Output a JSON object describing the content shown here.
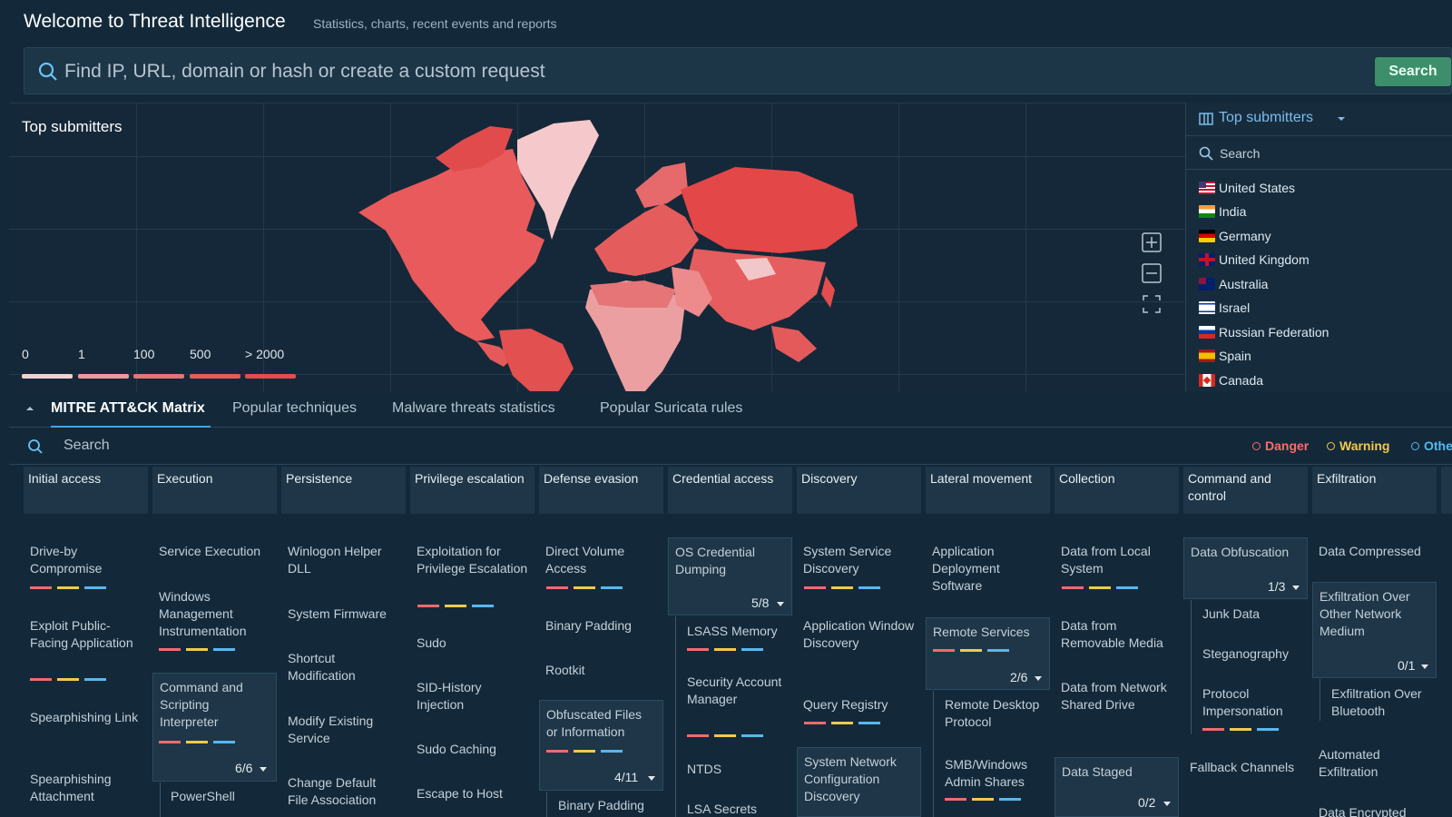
{
  "header": {
    "title": "Welcome to Threat Intelligence",
    "subtitle": "Statistics, charts, recent events and reports"
  },
  "search": {
    "placeholder": "Find IP, URL, domain or hash or create a custom request",
    "button": "Search"
  },
  "map": {
    "title": "Top submitters",
    "legend": [
      "0",
      "1",
      "100",
      "500",
      "> 2000"
    ],
    "legend_colors": [
      "#f1d2d3",
      "#ec9a9c",
      "#e67476",
      "#e65a5b",
      "#e44c4d"
    ],
    "controls": [
      "zoom-in-icon",
      "zoom-out-icon",
      "fullscreen-icon"
    ]
  },
  "side_panel": {
    "title": "Top submitters",
    "search_placeholder": "Search",
    "countries": [
      {
        "name": "United States",
        "flag": "us-flag-icon"
      },
      {
        "name": "India",
        "flag": "in-flag-icon"
      },
      {
        "name": "Germany",
        "flag": "de-flag-icon"
      },
      {
        "name": "United Kingdom",
        "flag": "gb-flag-icon"
      },
      {
        "name": "Australia",
        "flag": "au-flag-icon"
      },
      {
        "name": "Israel",
        "flag": "il-flag-icon"
      },
      {
        "name": "Russian Federation",
        "flag": "ru-flag-icon"
      },
      {
        "name": "Spain",
        "flag": "es-flag-icon"
      },
      {
        "name": "Canada",
        "flag": "ca-flag-icon"
      }
    ]
  },
  "tabs": [
    "MITRE ATT&CK Matrix",
    "Popular techniques",
    "Malware threats statistics",
    "Popular Suricata rules"
  ],
  "matrix": {
    "search_placeholder": "Search",
    "filters": [
      {
        "label": "Danger",
        "color": "#ff6b6b"
      },
      {
        "label": "Warning",
        "color": "#f2c94c"
      },
      {
        "label": "Othe",
        "color": "#56b8f0"
      }
    ],
    "severity_colors": [
      "#f26b6b",
      "#f2c94c",
      "#56b8f0"
    ],
    "columns": [
      "Initial access",
      "Execution",
      "Persistence",
      "Privilege escalation",
      "Defense evasion",
      "Credential access",
      "Discovery",
      "Lateral movement",
      "Collection",
      "Command and control",
      "Exfiltration"
    ],
    "techniques": {
      "initial_access": [
        "Drive-by Compromise",
        "Exploit Public-Facing Application",
        "Spearphishing Link",
        "Spearphishing Attachment"
      ],
      "execution": [
        "Service Execution",
        "Windows Management Instrumentation",
        "Command and Scripting Interpreter",
        "6/6",
        "PowerShell"
      ],
      "persistence": [
        "Winlogon Helper DLL",
        "System Firmware",
        "Shortcut Modification",
        "Modify Existing Service",
        "Change Default File Association"
      ],
      "privilege_escalation": [
        "Exploitation for Privilege Escalation",
        "Sudo",
        "SID-History Injection",
        "Sudo Caching",
        "Escape to Host"
      ],
      "defense_evasion": [
        "Direct Volume Access",
        "Binary Padding",
        "Rootkit",
        "Obfuscated Files or Information",
        "4/11",
        "Binary Padding"
      ],
      "credential_access": [
        "OS Credential Dumping",
        "5/8",
        "LSASS Memory",
        "Security Account Manager",
        "NTDS",
        "LSA Secrets"
      ],
      "discovery": [
        "System Service Discovery",
        "Application Window Discovery",
        "Query Registry",
        "System Network Configuration Discovery"
      ],
      "lateral_movement": [
        "Application Deployment Software",
        "Remote Services",
        "2/6",
        "Remote Desktop Protocol",
        "SMB/Windows Admin Shares"
      ],
      "collection": [
        "Data from Local System",
        "Data from Removable Media",
        "Data from Network Shared Drive",
        "Data Staged",
        "0/2"
      ],
      "command_and_control": [
        "Data Obfuscation",
        "1/3",
        "Junk Data",
        "Steganography",
        "Protocol Impersonation",
        "Fallback Channels"
      ],
      "exfiltration": [
        "Data Compressed",
        "Exfiltration Over Other Network Medium",
        "0/1",
        "Exfiltration Over Bluetooth",
        "Automated Exfiltration",
        "Data Encrypted"
      ]
    }
  }
}
